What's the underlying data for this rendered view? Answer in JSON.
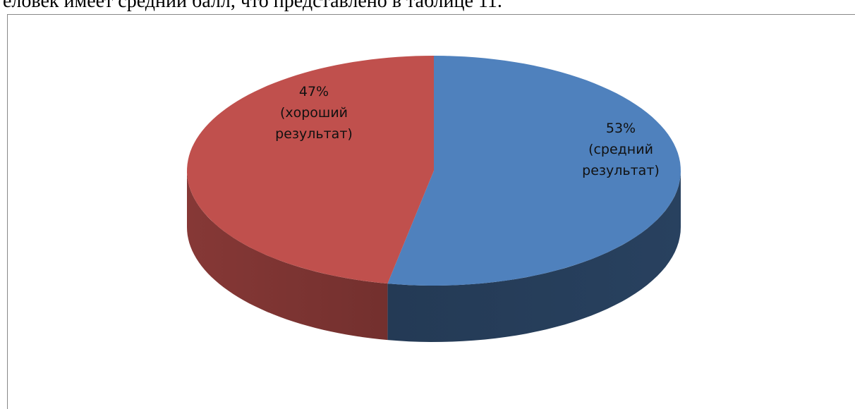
{
  "text": "еловек имеет средний балл, что представлено в таблице 11.",
  "chart_data": {
    "type": "pie",
    "categories": [
      "(средний результат)",
      "(хороший результат)"
    ],
    "values": [
      53,
      47
    ],
    "value_labels": [
      "53%",
      "47%"
    ],
    "colors": [
      "#4f81bd",
      "#c0504d"
    ]
  }
}
